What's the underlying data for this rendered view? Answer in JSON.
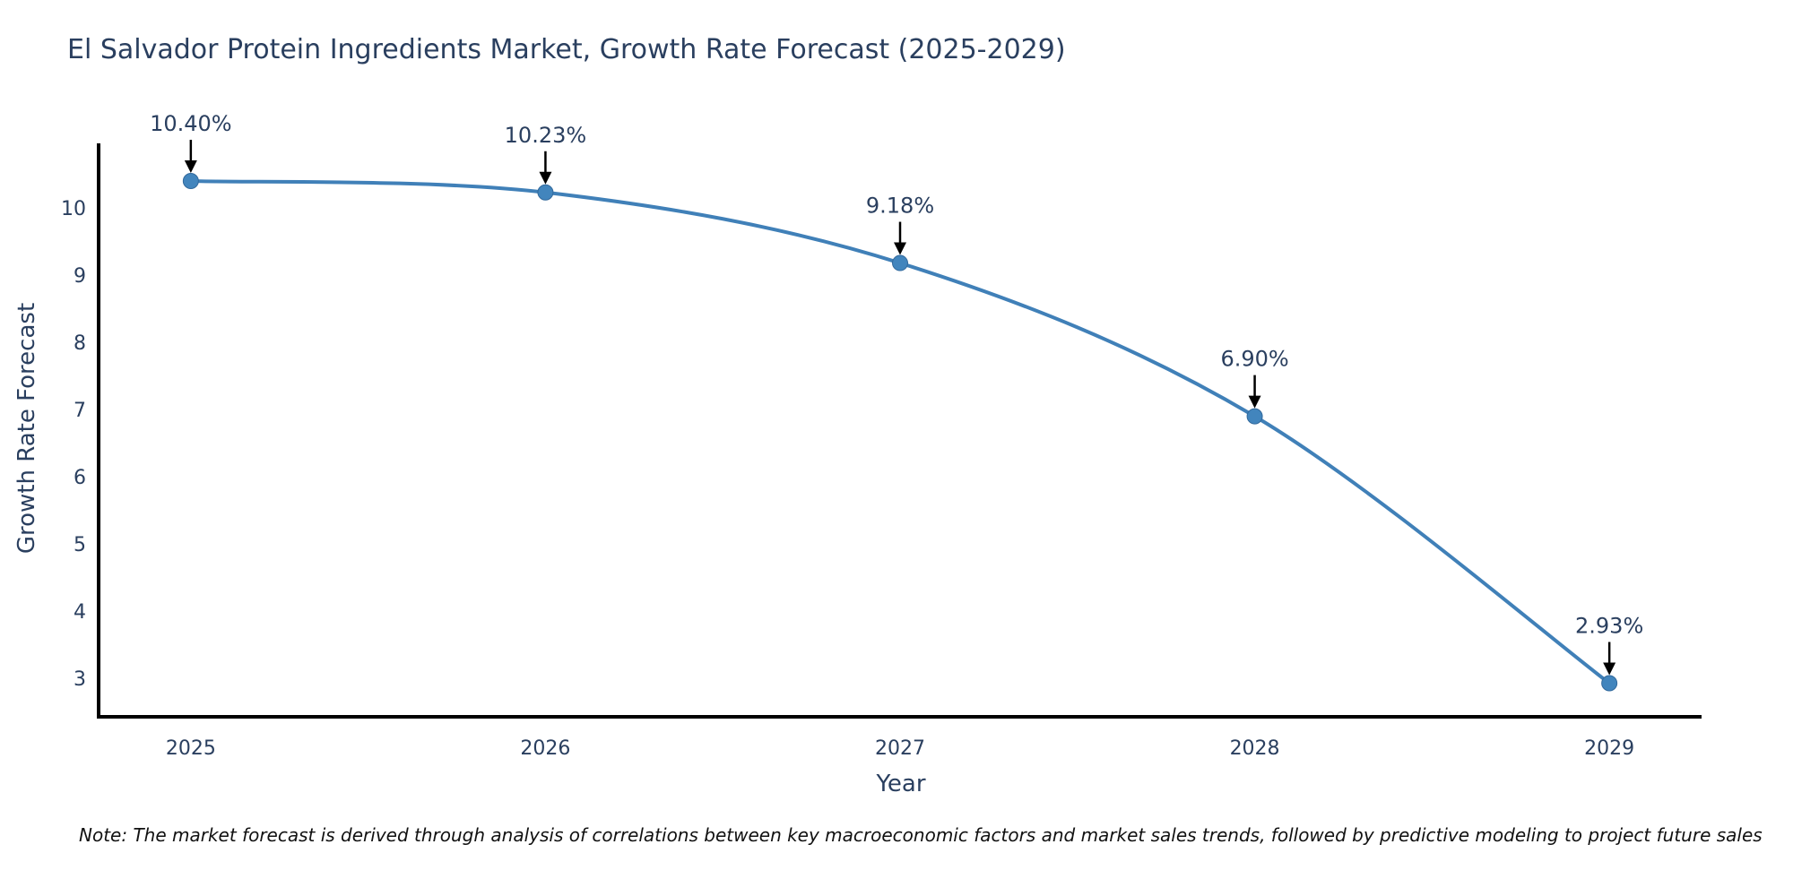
{
  "page": {
    "background": "#ffffff"
  },
  "chart_data": {
    "type": "line",
    "title": "El Salvador Protein Ingredients Market, Growth Rate Forecast (2025-2029)",
    "xlabel": "Year",
    "ylabel": "Growth Rate Forecast",
    "categories": [
      2025,
      2026,
      2027,
      2028,
      2029
    ],
    "values": [
      10.4,
      10.23,
      9.18,
      6.9,
      2.93
    ],
    "point_labels": [
      "10.40%",
      "10.23%",
      "9.18%",
      "6.90%",
      "2.93%"
    ],
    "yticks": [
      3,
      4,
      5,
      6,
      7,
      8,
      9,
      10
    ],
    "ylim": [
      2.43,
      10.96
    ],
    "xlim": [
      2024.74,
      2029.26
    ],
    "line_shape": "spline",
    "grid": false,
    "legend": "none",
    "markers": true,
    "annotation_arrows": true,
    "colors": {
      "line": "#4080b8",
      "marker": "#4285bd",
      "marker_edge": "#32699c",
      "axis": "#000000",
      "tick_text": "#2a3f5f",
      "annotation_text": "#2a3f5f",
      "arrow": "#000000",
      "title_text": "#2a3f5f"
    }
  },
  "note": {
    "text": "Note: The market forecast is derived through analysis of correlations between key macroeconomic factors and market sales trends, followed by predictive modeling to project future sales"
  }
}
